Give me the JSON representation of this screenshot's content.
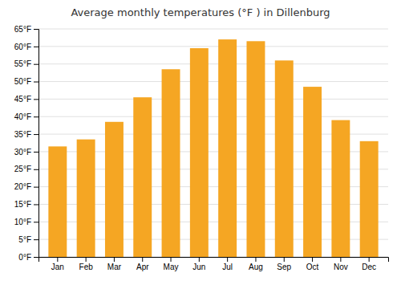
{
  "chart_data": {
    "type": "bar",
    "title": "Average monthly temperatures (°F ) in Dillenburg",
    "categories": [
      "Jan",
      "Feb",
      "Mar",
      "Apr",
      "May",
      "Jun",
      "Jul",
      "Aug",
      "Sep",
      "Oct",
      "Nov",
      "Dec"
    ],
    "values": [
      31.5,
      33.5,
      38.5,
      45.5,
      53.5,
      59.5,
      62.0,
      61.5,
      56.0,
      48.5,
      39.0,
      33.0
    ],
    "color": "#F5A623",
    "ylim": [
      0,
      65
    ],
    "yticks": [
      {
        "value": 0,
        "label": "0°F"
      },
      {
        "value": 5,
        "label": "5°F"
      },
      {
        "value": 10,
        "label": "10°F"
      },
      {
        "value": 15,
        "label": "15°F"
      },
      {
        "value": 20,
        "label": "20°F"
      },
      {
        "value": 25,
        "label": "25°F"
      },
      {
        "value": 30,
        "label": "30°F"
      },
      {
        "value": 35,
        "label": "35°F"
      },
      {
        "value": 40,
        "label": "40°F"
      },
      {
        "value": 45,
        "label": "45°F"
      },
      {
        "value": 50,
        "label": "50°F"
      },
      {
        "value": 55,
        "label": "55°F"
      },
      {
        "value": 60,
        "label": "60°F"
      },
      {
        "value": 65,
        "label": "65°F"
      }
    ],
    "grid": true
  }
}
